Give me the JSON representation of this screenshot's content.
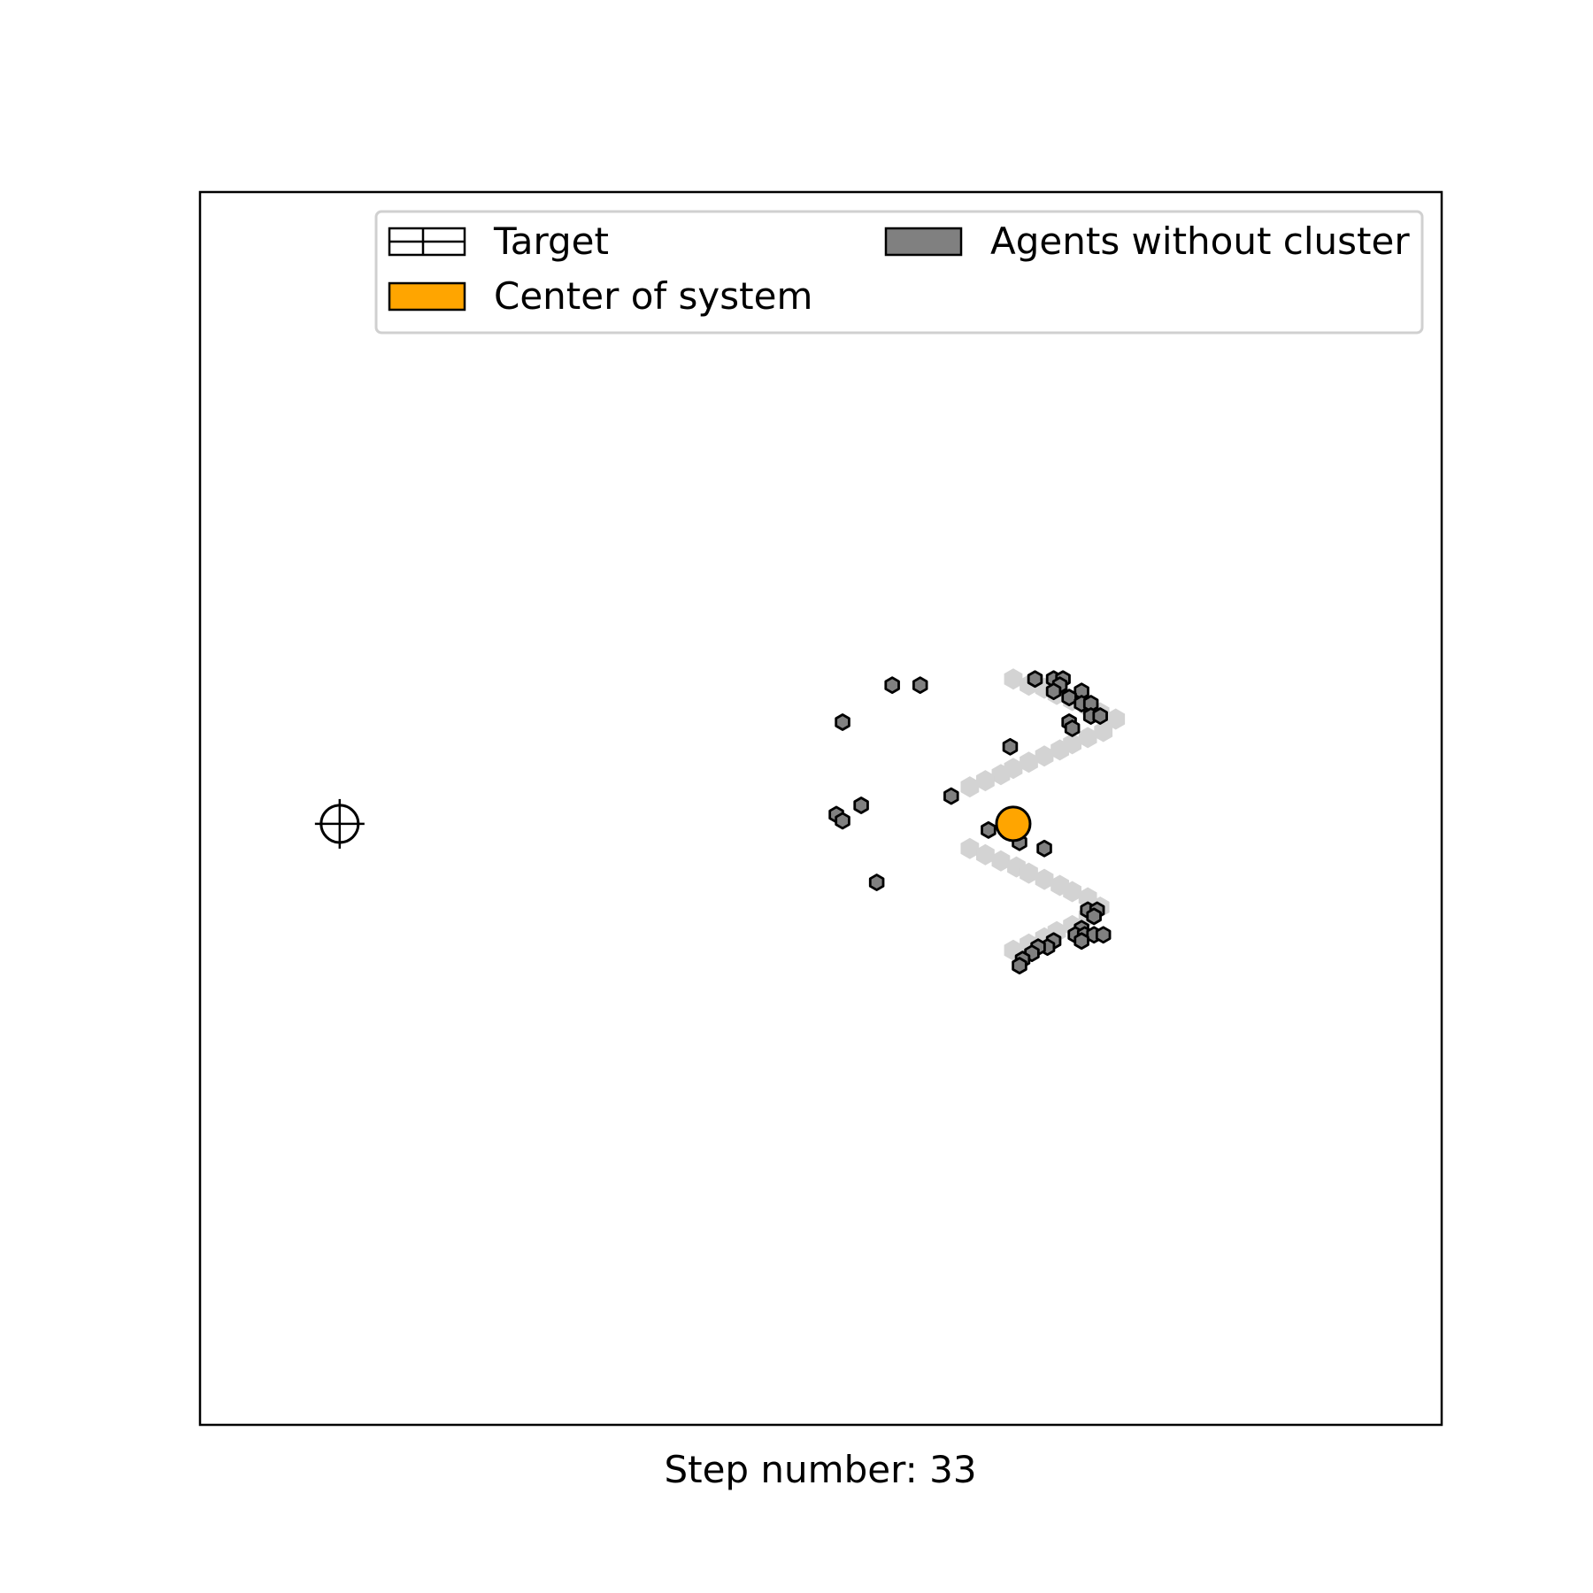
{
  "chart_data": {
    "type": "scatter",
    "title": "",
    "xlabel": "Step number: 33",
    "ylabel": "",
    "xlim": [
      0,
      40
    ],
    "ylim": [
      0,
      40
    ],
    "grid": false,
    "axes_ticks": false,
    "legend": {
      "placement": "top-right",
      "entries": [
        {
          "label": "Target",
          "marker": "grid-rectangle",
          "color": "#ffffff"
        },
        {
          "label": "Center of system",
          "color": "#ffa500"
        },
        {
          "label": "Agents without cluster",
          "color": "#808080"
        }
      ]
    },
    "target": {
      "x": 4.5,
      "y": 19.5
    },
    "center_of_system": {
      "x": 26.2,
      "y": 19.5
    },
    "target_shape": {
      "color": "#d3d3d3",
      "points": [
        [
          26.2,
          24.2
        ],
        [
          26.7,
          24.0
        ],
        [
          27.2,
          23.9
        ],
        [
          27.6,
          23.7
        ],
        [
          28.1,
          23.5
        ],
        [
          28.6,
          23.3
        ],
        [
          29.0,
          23.1
        ],
        [
          29.5,
          22.9
        ],
        [
          29.1,
          22.5
        ],
        [
          28.6,
          22.3
        ],
        [
          28.1,
          22.1
        ],
        [
          27.7,
          21.9
        ],
        [
          27.2,
          21.7
        ],
        [
          26.7,
          21.5
        ],
        [
          26.2,
          21.3
        ],
        [
          25.8,
          21.1
        ],
        [
          25.3,
          20.9
        ],
        [
          24.8,
          20.7
        ],
        [
          24.8,
          18.7
        ],
        [
          25.3,
          18.5
        ],
        [
          25.8,
          18.3
        ],
        [
          26.3,
          18.1
        ],
        [
          26.7,
          17.9
        ],
        [
          27.2,
          17.7
        ],
        [
          27.7,
          17.5
        ],
        [
          28.1,
          17.3
        ],
        [
          28.6,
          17.1
        ],
        [
          29.0,
          16.8
        ],
        [
          28.6,
          16.5
        ],
        [
          28.1,
          16.2
        ],
        [
          27.6,
          16.0
        ],
        [
          27.2,
          15.8
        ],
        [
          26.7,
          15.6
        ],
        [
          26.2,
          15.4
        ]
      ]
    },
    "series": [
      {
        "name": "Agents without cluster",
        "color": "#808080",
        "points": [
          [
            22.3,
            24.0
          ],
          [
            23.2,
            24.0
          ],
          [
            20.7,
            22.8
          ],
          [
            24.2,
            20.4
          ],
          [
            21.3,
            20.1
          ],
          [
            20.5,
            19.8
          ],
          [
            20.7,
            19.6
          ],
          [
            25.4,
            19.3
          ],
          [
            26.4,
            18.9
          ],
          [
            27.2,
            18.7
          ],
          [
            21.8,
            17.6
          ],
          [
            26.9,
            24.2
          ],
          [
            27.5,
            24.2
          ],
          [
            27.8,
            24.2
          ],
          [
            27.7,
            24.0
          ],
          [
            27.5,
            23.8
          ],
          [
            28.4,
            23.8
          ],
          [
            28.0,
            23.6
          ],
          [
            28.4,
            23.4
          ],
          [
            28.7,
            23.4
          ],
          [
            28.7,
            23.0
          ],
          [
            29.0,
            23.0
          ],
          [
            28.0,
            22.8
          ],
          [
            28.1,
            22.6
          ],
          [
            26.1,
            22.0
          ],
          [
            28.6,
            16.7
          ],
          [
            28.9,
            16.7
          ],
          [
            28.8,
            16.5
          ],
          [
            28.4,
            16.1
          ],
          [
            28.2,
            15.9
          ],
          [
            28.5,
            15.9
          ],
          [
            28.8,
            15.9
          ],
          [
            29.1,
            15.9
          ],
          [
            28.4,
            15.7
          ],
          [
            27.5,
            15.7
          ],
          [
            27.3,
            15.5
          ],
          [
            27.0,
            15.5
          ],
          [
            26.8,
            15.3
          ],
          [
            26.5,
            15.1
          ],
          [
            26.4,
            14.9
          ]
        ]
      }
    ]
  }
}
